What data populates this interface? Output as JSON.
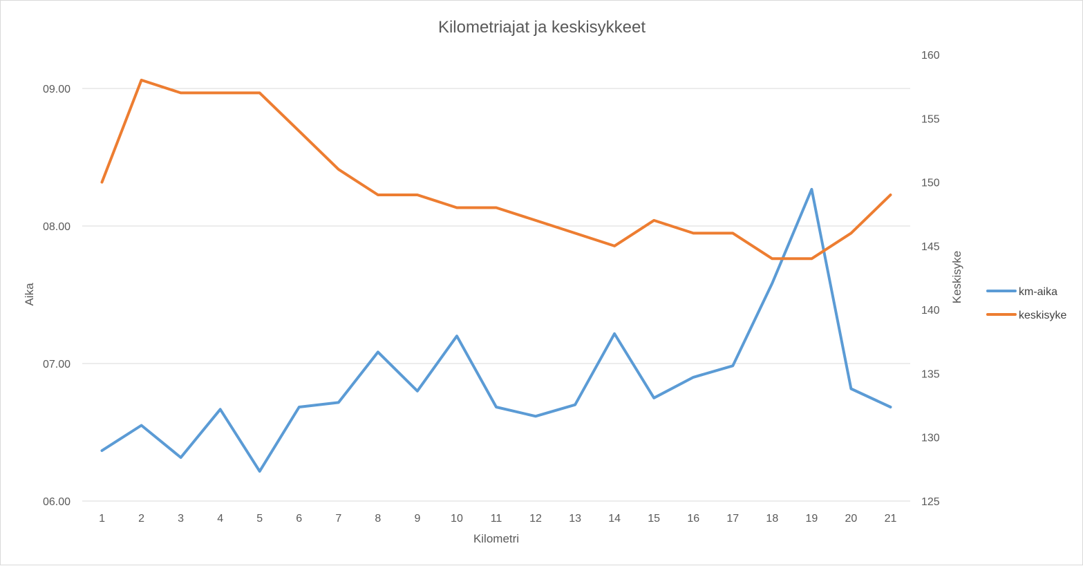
{
  "chart_data": {
    "type": "line",
    "title": "Kilometriajat ja keskisykkeet",
    "xlabel": "Kilometri",
    "ylabel": "Aika",
    "y2label": "Keskisyke",
    "categories": [
      "1",
      "2",
      "3",
      "4",
      "5",
      "6",
      "7",
      "8",
      "9",
      "10",
      "11",
      "12",
      "13",
      "14",
      "15",
      "16",
      "17",
      "18",
      "19",
      "20",
      "21"
    ],
    "y_ticks": [
      "06.00",
      "07.00",
      "08.00",
      "09.00"
    ],
    "ylim": [
      360,
      555
    ],
    "y2_ticks": [
      "125",
      "130",
      "135",
      "140",
      "145",
      "150",
      "155",
      "160"
    ],
    "y2lim": [
      125,
      160
    ],
    "grid": true,
    "legend_position": "right",
    "series": [
      {
        "name": "km-aika",
        "axis": "left",
        "color": "#5B9BD5",
        "unit": "seconds",
        "values": [
          382,
          393,
          379,
          400,
          373,
          401,
          403,
          425,
          408,
          432,
          401,
          397,
          402,
          433,
          405,
          414,
          419,
          455,
          496,
          409,
          401
        ]
      },
      {
        "name": "keskisyke",
        "axis": "right",
        "color": "#ED7D31",
        "values": [
          150,
          158,
          157,
          157,
          157,
          154,
          151,
          149,
          149,
          148,
          148,
          147,
          146,
          145,
          147,
          146,
          146,
          144,
          144,
          146,
          149
        ]
      }
    ]
  }
}
